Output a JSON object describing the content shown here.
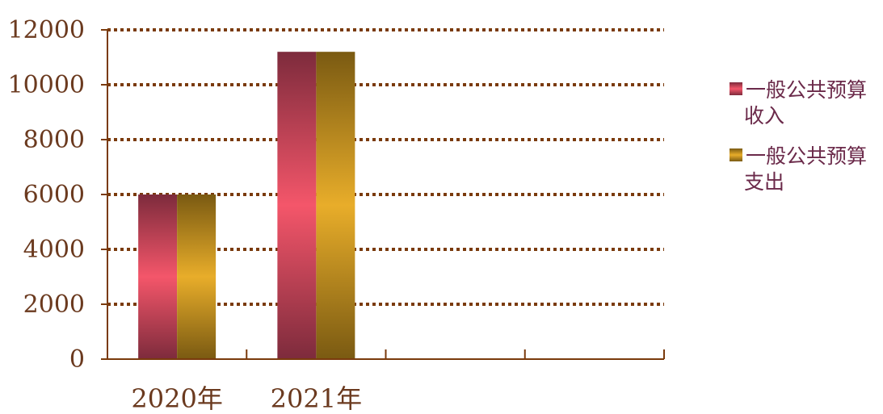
{
  "chart_data": {
    "type": "bar",
    "categories": [
      "2020年",
      "2021年",
      "",
      ""
    ],
    "series": [
      {
        "name": "一般公共预算收入",
        "values": [
          6000,
          11200,
          null,
          null
        ],
        "colors": {
          "edge": "#7d2b3c",
          "center": "#f4566a"
        }
      },
      {
        "name": "一般公共预算支出",
        "values": [
          6000,
          11200,
          null,
          null
        ],
        "colors": {
          "edge": "#7a5a12",
          "center": "#e8ad2a"
        }
      }
    ],
    "y_ticks": [
      "0",
      "2000",
      "4000",
      "6000",
      "8000",
      "10000",
      "12000"
    ],
    "ylim": [
      0,
      12000
    ],
    "grid": true,
    "legend_position": "right",
    "legend_lines": [
      [
        "一般公共预算",
        "收入"
      ],
      [
        "一般公共预算",
        "支出"
      ]
    ]
  }
}
